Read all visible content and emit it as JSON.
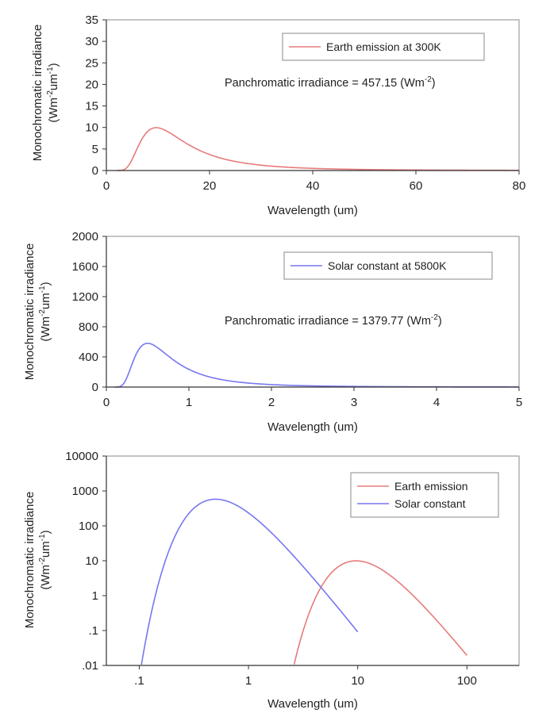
{
  "chart_data": [
    {
      "type": "line",
      "id": "earth",
      "xlabel": "Wavelength (um)",
      "ylabel_line1": "Monochromatic irradiance",
      "ylabel_line2_parts": [
        "(Wm",
        "-2",
        "um",
        "-1",
        ")"
      ],
      "xlim": [
        0,
        80
      ],
      "ylim": [
        0,
        35
      ],
      "xticks": [
        0,
        20,
        40,
        60,
        80
      ],
      "yticks": [
        0,
        5,
        10,
        15,
        20,
        25,
        30,
        35
      ],
      "series": [
        {
          "name": "Earth emission at 300K",
          "color": "#e77b7b",
          "temperature_K": 300,
          "scale": 1.0,
          "x_range": [
            2,
            80
          ]
        }
      ],
      "annotation": {
        "text": "Panchromatic irradiance = 457.15 (Wm",
        "sup": "-2",
        "close": ")"
      }
    },
    {
      "type": "line",
      "id": "solar",
      "xlabel": "Wavelength (um)",
      "ylabel_line1": "Monochromatic irradiance",
      "ylabel_line2_parts": [
        "(Wm",
        "-2",
        "um",
        "-1",
        ")"
      ],
      "xlim": [
        0,
        5
      ],
      "ylim": [
        0,
        2000
      ],
      "xticks": [
        0,
        1,
        2,
        3,
        4,
        5
      ],
      "yticks": [
        0,
        400,
        800,
        1200,
        1600,
        2000
      ],
      "series": [
        {
          "name": "Solar constant at 5800K",
          "color": "#7777f0",
          "temperature_K": 5800,
          "scale": 2.16e-05,
          "x_range": [
            0.1,
            5
          ]
        }
      ],
      "annotation": {
        "text": "Panchromatic irradiance = 1379.77 (Wm",
        "sup": "-2",
        "close": ")"
      }
    },
    {
      "type": "line",
      "id": "log",
      "xscale": "log",
      "yscale": "log",
      "xlabel": "Wavelength (um)",
      "ylabel_line1": "Monochromatic irradiance",
      "ylabel_line2_parts": [
        "(Wm",
        "-2",
        "um",
        "-1",
        ")"
      ],
      "xlim": [
        0.05,
        300
      ],
      "ylim": [
        0.01,
        10000
      ],
      "xticks": [
        0.1,
        1,
        10,
        100
      ],
      "xtick_labels": [
        ".1",
        "1",
        "10",
        "100"
      ],
      "yticks": [
        0.01,
        0.1,
        1,
        10,
        100,
        1000,
        10000
      ],
      "ytick_labels": [
        ".01",
        ".1",
        "1",
        "10",
        "100",
        "1000",
        "10000"
      ],
      "series": [
        {
          "name": "Earth emission",
          "color": "#e77b7b",
          "temperature_K": 300,
          "scale": 1.0,
          "x_range": [
            2.5,
            100
          ]
        },
        {
          "name": "Solar constant",
          "color": "#7777f0",
          "temperature_K": 5800,
          "scale": 2.16e-05,
          "x_range": [
            0.1,
            10
          ]
        }
      ]
    }
  ]
}
